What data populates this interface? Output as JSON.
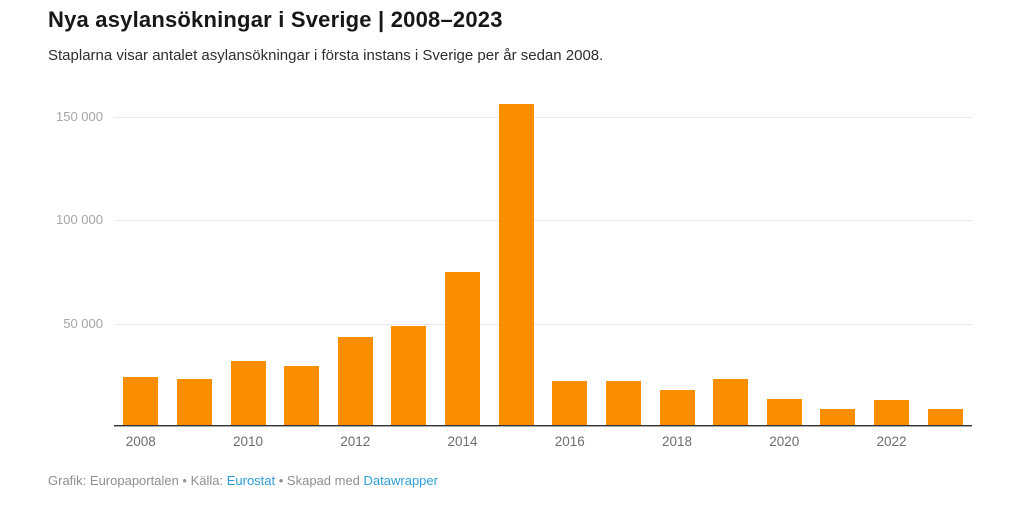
{
  "header": {
    "title": "Nya asylansökningar i Sverige | 2008–2023",
    "subtitle": "Staplarna visar antalet asylansökningar i första instans i Sverige per år sedan 2008."
  },
  "chart_data": {
    "type": "bar",
    "title": "Nya asylansökningar i Sverige | 2008–2023",
    "subtitle": "Staplarna visar antalet asylansökningar i första instans i Sverige per år sedan 2008.",
    "categories": [
      "2008",
      "2009",
      "2010",
      "2011",
      "2012",
      "2013",
      "2014",
      "2015",
      "2016",
      "2017",
      "2018",
      "2019",
      "2020",
      "2021",
      "2022",
      "2023"
    ],
    "values": [
      24200,
      23200,
      31900,
      29500,
      43500,
      48800,
      74900,
      156000,
      22200,
      22200,
      17900,
      23200,
      13500,
      8700,
      13000,
      8700
    ],
    "xlabel": "",
    "ylabel": "",
    "ylim": [
      0,
      157000
    ],
    "ytick_values": [
      50000,
      100000,
      150000
    ],
    "ytick_labels": [
      "50 000",
      "100 000",
      "150 000"
    ],
    "xtick_shown": [
      "2008",
      "2010",
      "2012",
      "2014",
      "2016",
      "2018",
      "2020",
      "2022"
    ],
    "grid": "horizontal",
    "legend": "none",
    "bar_color": "#f98f00"
  },
  "footer": {
    "segments": [
      {
        "text": "Grafik: Europaportalen",
        "link": false
      },
      {
        "text": " • ",
        "link": false
      },
      {
        "text": "Källa: ",
        "link": false
      },
      {
        "text": "Eurostat",
        "link": true
      },
      {
        "text": " • ",
        "link": false
      },
      {
        "text": "Skapad med ",
        "link": false
      },
      {
        "text": "Datawrapper",
        "link": true
      }
    ]
  },
  "colors": {
    "bar": "#f98f00",
    "gridline": "#e9e9e9",
    "axis_line": "#333333",
    "y_label": "#a6a6a6",
    "x_label": "#6e6e6e",
    "title": "#171717",
    "subtitle": "#2e2e2e",
    "footer_text": "#8f8f8f",
    "footer_link": "#2d9dd9"
  }
}
